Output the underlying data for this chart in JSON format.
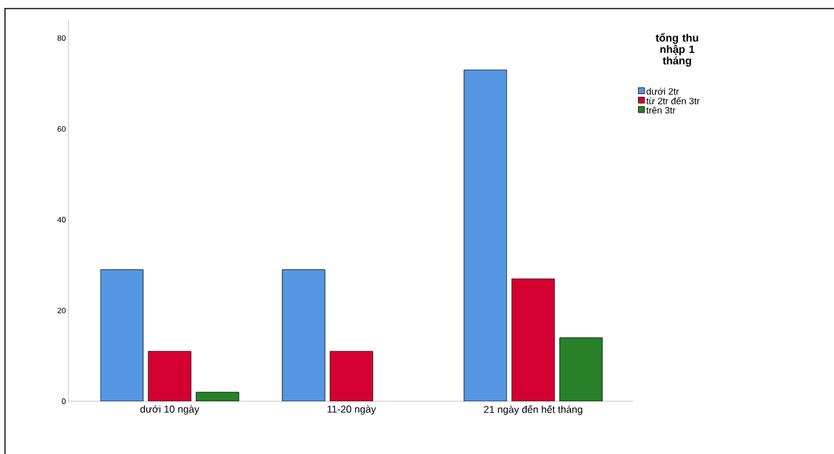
{
  "chart_data": {
    "type": "bar",
    "legend_title": "tổng thu nhập 1 tháng",
    "categories": [
      "dưới 10 ngày",
      "11-20 ngày",
      "21 ngày đến hết tháng"
    ],
    "series": [
      {
        "name": "dưới 2tr",
        "color": "#5597e3",
        "values": [
          29,
          29,
          73
        ]
      },
      {
        "name": "từ 2tr đến 3tr",
        "color": "#d50032",
        "values": [
          11,
          11,
          27
        ]
      },
      {
        "name": "trên 3tr",
        "color": "#288128",
        "values": [
          2,
          null,
          14
        ]
      }
    ],
    "ylim": [
      0,
      84
    ],
    "yticks": [
      0,
      20,
      40,
      60,
      80
    ],
    "grid": false,
    "legend": "top right"
  }
}
